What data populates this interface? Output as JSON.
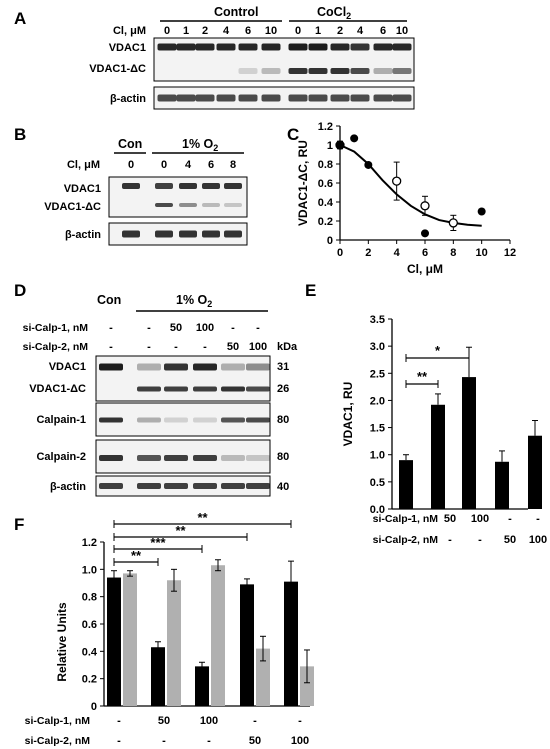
{
  "panels": {
    "A": {
      "letter": "A",
      "cl_label": "Cl, μM",
      "groups": {
        "control": "Control",
        "cocl2_main": "CoCl",
        "cocl2_sub": "2"
      },
      "doses": [
        "0",
        "1",
        "2",
        "4",
        "6",
        "10",
        "0",
        "1",
        "2",
        "4",
        "6",
        "10"
      ],
      "blot_labels": [
        "VDAC1",
        "VDAC1-ΔC",
        "β-actin"
      ]
    },
    "B": {
      "letter": "B",
      "con": "Con",
      "hypoxia_main": "1% O",
      "hypoxia_sub": "2",
      "cl_label": "Cl, μM",
      "doses": [
        "0",
        "0",
        "4",
        "6",
        "8"
      ],
      "blot_labels": [
        "VDAC1",
        "VDAC1-ΔC",
        "β-actin"
      ]
    },
    "D": {
      "letter": "D",
      "con": "Con",
      "hypoxia_main": "1% O",
      "hypoxia_sub": "2",
      "row_labels": [
        "si-Calp-1, nM",
        "si-Calp-2, nM"
      ],
      "calp1": [
        "-",
        "-",
        "50",
        "100",
        "-",
        "-"
      ],
      "calp2": [
        "-",
        "-",
        "-",
        "-",
        "50",
        "100"
      ],
      "kda_label": "kDa",
      "blot_labels": [
        "VDAC1",
        "VDAC1-ΔC",
        "Calpain-1",
        "Calpain-2",
        "β-actin"
      ],
      "kda": [
        "31",
        "26",
        "80",
        "80",
        "40"
      ]
    },
    "C_letter": "C",
    "E_letter": "E",
    "F_letter": "F"
  },
  "chart_data": [
    {
      "panel": "C",
      "type": "scatter",
      "xlabel": "Cl, μM",
      "ylabel": "VDAC1-ΔC, RU",
      "xlim": [
        0,
        12
      ],
      "ylim": [
        0,
        1.2
      ],
      "xticks": [
        "0",
        "2",
        "4",
        "6",
        "8",
        "10",
        "12"
      ],
      "yticks": [
        "0",
        "0.2",
        "0.4",
        "0.6",
        "0.8",
        "1",
        "1.2"
      ],
      "series": [
        {
          "marker": "filled",
          "points": [
            [
              0,
              1.0
            ],
            [
              1,
              1.07
            ],
            [
              2,
              0.79
            ],
            [
              6,
              0.07
            ],
            [
              10,
              0.3
            ]
          ]
        },
        {
          "marker": "open",
          "points": [
            [
              0,
              1.0
            ],
            [
              4,
              0.62
            ],
            [
              6,
              0.36
            ],
            [
              8,
              0.18
            ]
          ],
          "errors": [
            0.04,
            0.2,
            0.1,
            0.08
          ]
        }
      ],
      "fit_curve": [
        [
          0,
          1.0
        ],
        [
          1,
          0.93
        ],
        [
          2,
          0.8
        ],
        [
          3,
          0.63
        ],
        [
          4,
          0.48
        ],
        [
          5,
          0.36
        ],
        [
          6,
          0.27
        ],
        [
          7,
          0.21
        ],
        [
          8,
          0.18
        ],
        [
          9,
          0.16
        ],
        [
          10,
          0.15
        ]
      ]
    },
    {
      "panel": "E",
      "type": "bar",
      "ylabel": "VDAC1, RU",
      "ylim": [
        0,
        3.5
      ],
      "yticks": [
        "0.0",
        "0.5",
        "1.0",
        "1.5",
        "2.0",
        "2.5",
        "3.0",
        "3.5"
      ],
      "values": [
        0.9,
        1.92,
        2.43,
        0.87,
        1.35
      ],
      "errors": [
        0.1,
        0.2,
        0.55,
        0.2,
        0.28
      ],
      "bar_color": "#000000",
      "calp1": [
        "-",
        "50",
        "100",
        "-",
        "-"
      ],
      "calp2": [
        "-",
        "-",
        "-",
        "50",
        "100"
      ],
      "row_labels": [
        "si-Calp-1, nM",
        "si-Calp-2, nM"
      ],
      "significance": [
        {
          "from": 0,
          "to": 2,
          "label": "*"
        },
        {
          "from": 0,
          "to": 1,
          "label": "**"
        }
      ]
    },
    {
      "panel": "F",
      "type": "bar",
      "ylabel": "Relative Units",
      "ylim": [
        0,
        1.2
      ],
      "yticks": [
        "0",
        "0.2",
        "0.4",
        "0.6",
        "0.8",
        "1.0",
        "1.2"
      ],
      "series": [
        {
          "color": "#000000",
          "values": [
            0.94,
            0.43,
            0.29,
            0.89,
            0.91
          ],
          "errors": [
            0.05,
            0.04,
            0.03,
            0.04,
            0.15
          ]
        },
        {
          "color": "#b0b0b0",
          "values": [
            0.97,
            0.92,
            1.03,
            0.42,
            0.29
          ],
          "errors": [
            0.02,
            0.08,
            0.04,
            0.09,
            0.12
          ]
        }
      ],
      "calp1": [
        "-",
        "50",
        "100",
        "-",
        "-"
      ],
      "calp2": [
        "-",
        "-",
        "-",
        "50",
        "100"
      ],
      "row_labels": [
        "si-Calp-1, nM",
        "si-Calp-2, nM"
      ],
      "significance": [
        {
          "from": 0,
          "to": 4,
          "label": "**"
        },
        {
          "from": 0,
          "to": 3,
          "label": "**"
        },
        {
          "from": 0,
          "to": 2,
          "label": "***"
        },
        {
          "from": 0,
          "to": 1,
          "label": "**"
        }
      ]
    }
  ]
}
